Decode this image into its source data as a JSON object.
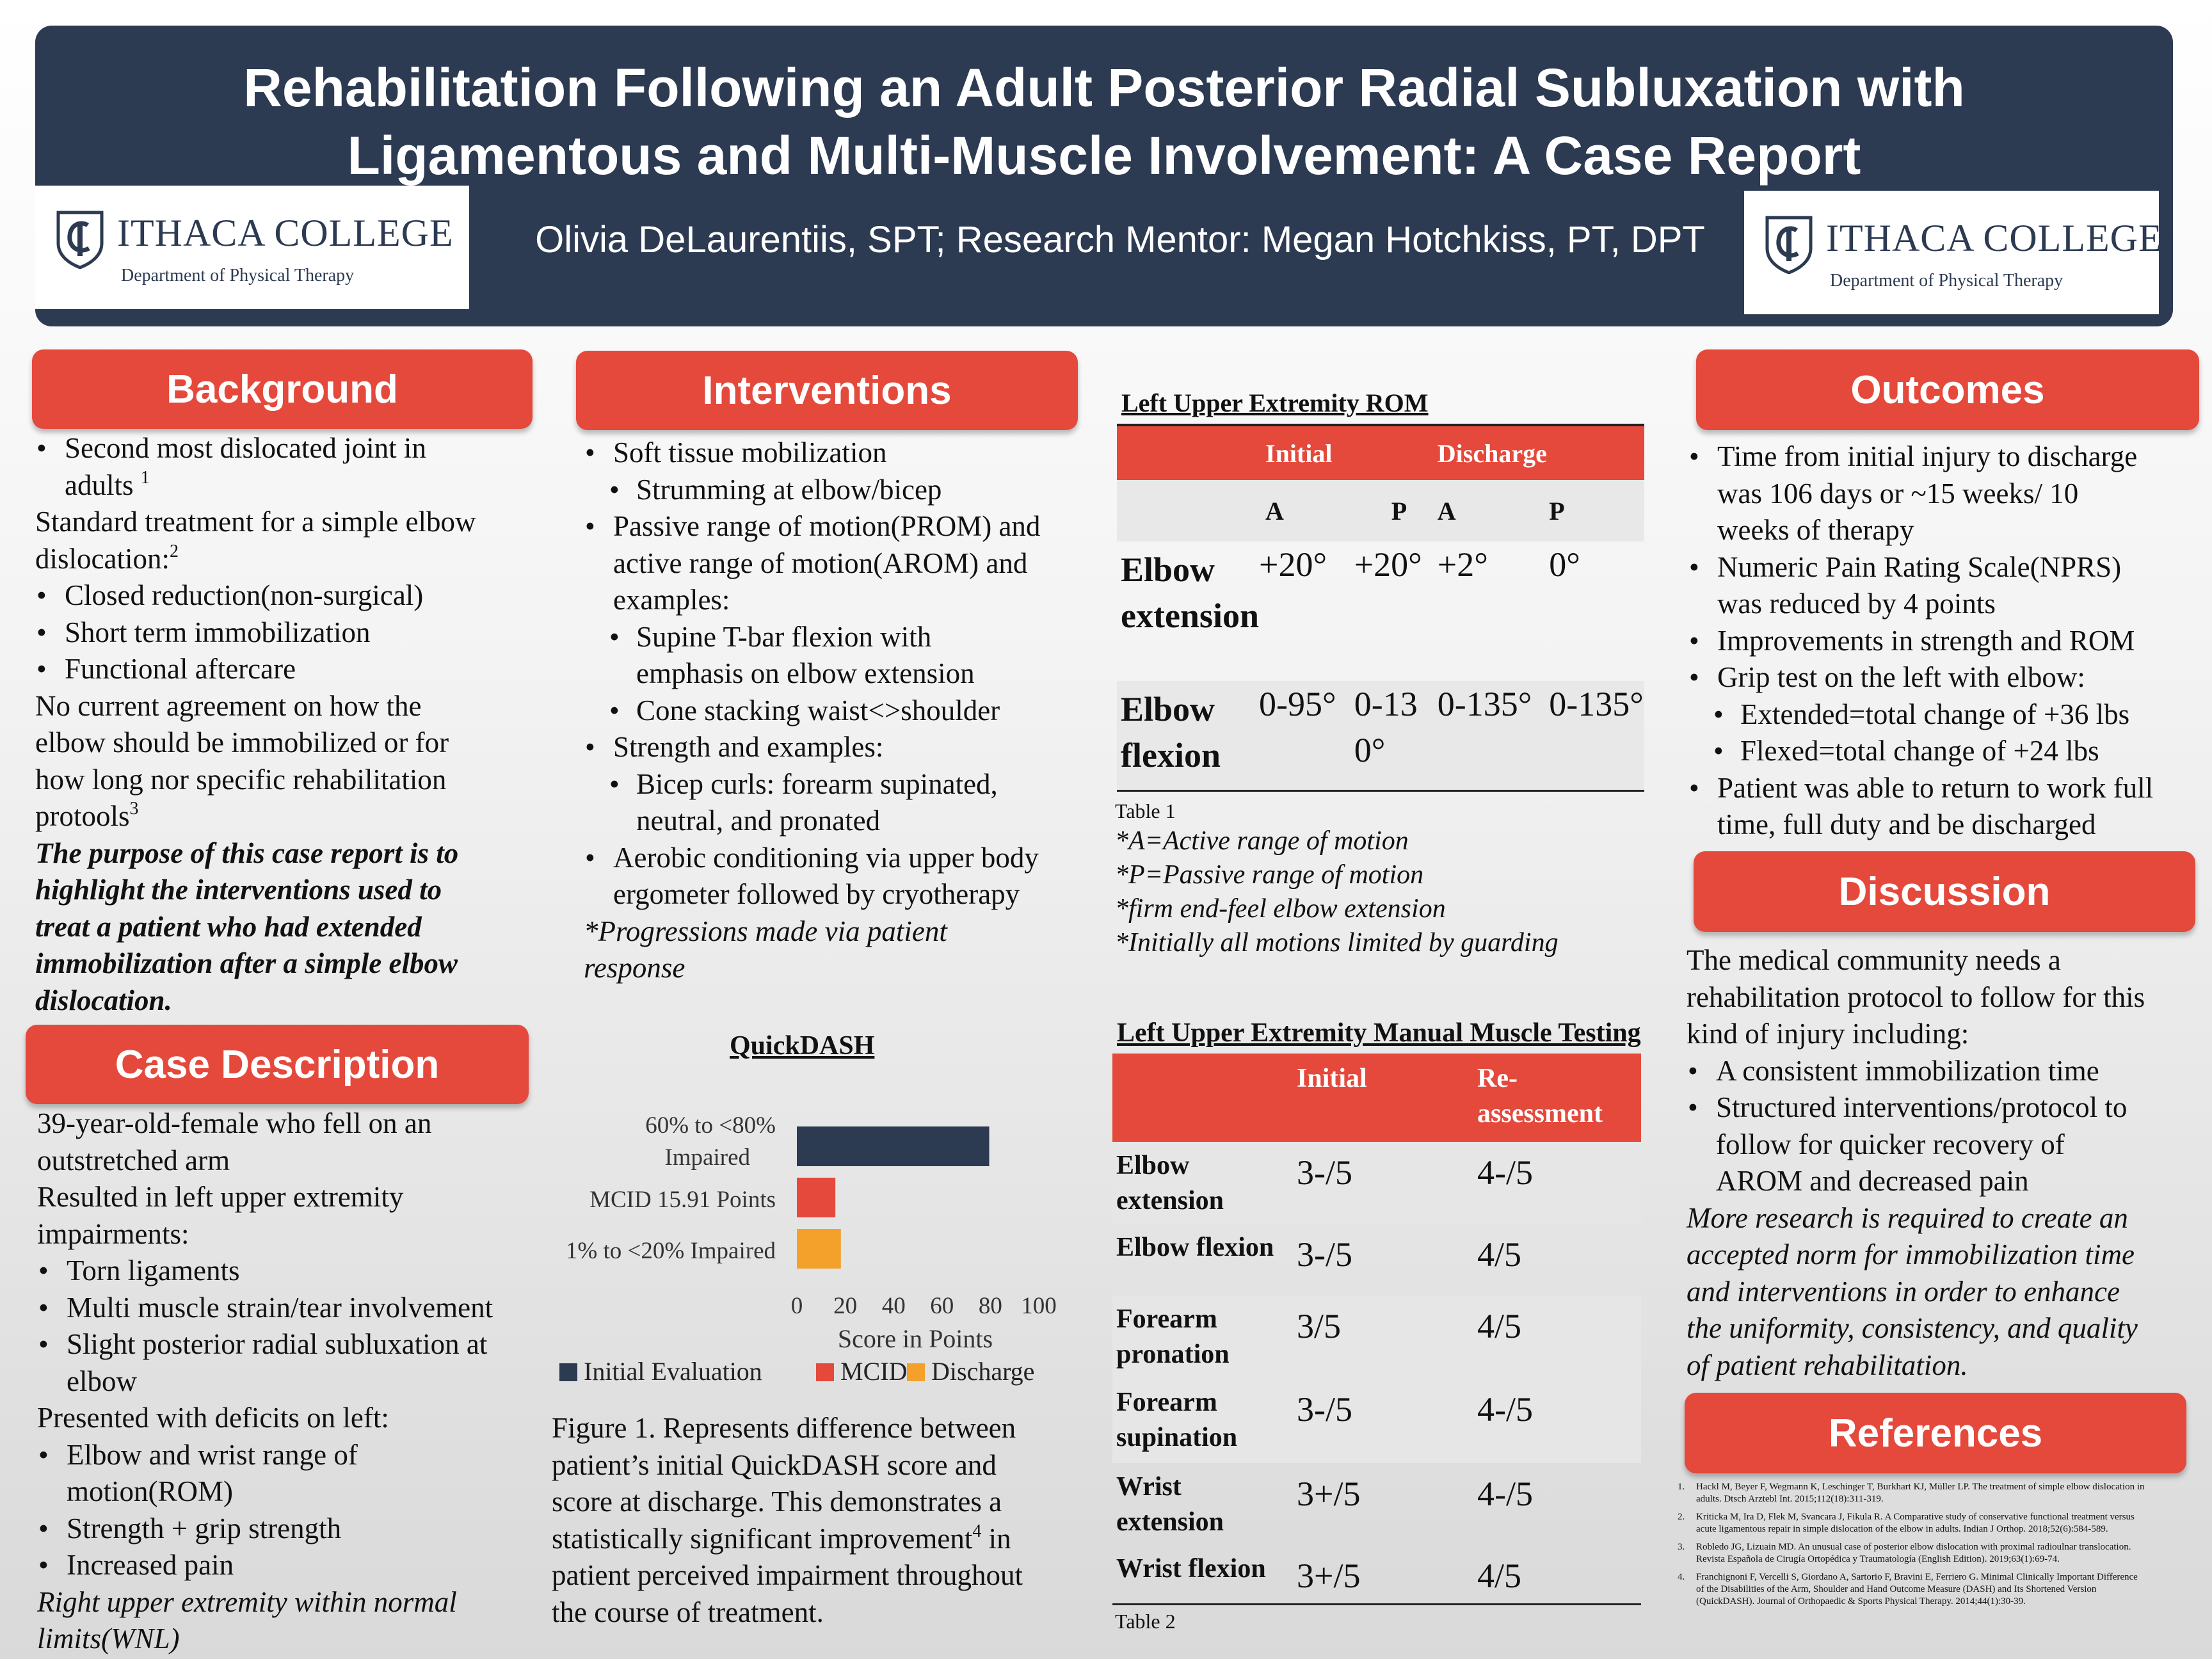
{
  "header": {
    "title_line1": "Rehabilitation Following an Adult Posterior Radial Subluxation with",
    "title_line2": "Ligamentous and Multi-Muscle Involvement: A Case Report",
    "authors": "Olivia DeLaurentiis, SPT; Research Mentor: Megan Hotchkiss, PT, DPT",
    "logo_name": "ITHACA COLLEGE",
    "logo_dept": "Department of Physical Therapy",
    "colors": {
      "header_bg": "#2c3a52",
      "accent": "#e4493c"
    }
  },
  "background": {
    "heading": "Background",
    "b1a": "Second most dislocated joint in",
    "b1b": "adults",
    "b1_ref": "1",
    "p1a": "Standard treatment for a simple elbow",
    "p1b": "dislocation:",
    "p1_ref": "2",
    "b2": "Closed reduction(non-surgical)",
    "b3": "Short term immobilization",
    "b4": "Functional aftercare",
    "p2a": "No current agreement on how the",
    "p2b": "elbow should be immobilized or for",
    "p2c": "how long nor specific rehabilitation",
    "p2d": "protools",
    "p2_ref": "3",
    "purpose1": "The purpose of this case report is to",
    "purpose2": "highlight the interventions used to",
    "purpose3": "treat a patient who had extended",
    "purpose4": "immobilization after a simple elbow",
    "purpose5": "dislocation."
  },
  "case": {
    "heading": "Case Description",
    "l1": "39-year-old-female who fell on an",
    "l2": "outstretched arm",
    "l3": "Resulted in left upper extremity",
    "l4": "impairments:",
    "b1": "Torn ligaments",
    "b2": "Multi muscle strain/tear involvement",
    "b3a": "Slight posterior radial subluxation at",
    "b3b": "elbow",
    "l5": "Presented with deficits on left:",
    "b4a": "Elbow and wrist range of",
    "b4b": "motion(ROM)",
    "b5": "Strength + grip strength",
    "b6": "Increased pain",
    "wnl1": "Right upper extremity within normal",
    "wnl2": "limits(WNL)"
  },
  "interventions": {
    "heading": "Interventions",
    "i1": "Soft tissue mobilization",
    "i1a": "Strumming at elbow/bicep",
    "i2a": "Passive range of motion(PROM) and",
    "i2b": "active range of motion(AROM) and",
    "i2c": "examples:",
    "i2s1a": "Supine T-bar flexion with",
    "i2s1b": "emphasis on elbow extension",
    "i2s2": "Cone stacking waist<>shoulder",
    "i3": "Strength and examples:",
    "i3s1a": "Bicep curls: forearm supinated,",
    "i3s1b": "neutral, and pronated",
    "i4a": "Aerobic conditioning via upper body",
    "i4b": "ergometer followed by cryotherapy",
    "prog1": "*Progressions made via patient",
    "prog2": "response"
  },
  "chart_data": {
    "type": "bar",
    "orientation": "horizontal",
    "title": "QuickDASH",
    "categories": [
      "60% to <80% Impaired",
      "MCID 15.91 Points",
      "1% to <20% Impaired"
    ],
    "series": [
      {
        "name": "Initial Evaluation",
        "color": "#2c3a52",
        "values": [
          79.5,
          null,
          null
        ]
      },
      {
        "name": "MCID",
        "color": "#e4493c",
        "values": [
          null,
          15.91,
          null
        ]
      },
      {
        "name": "Discharge",
        "color": "#f4a12b",
        "values": [
          null,
          null,
          18.2
        ]
      }
    ],
    "xlabel": "Score in Points",
    "xlim": [
      0,
      100
    ],
    "xticks": [
      "0",
      "20",
      "40",
      "60",
      "80",
      "100"
    ],
    "cat_label_1a": "60% to <80%",
    "cat_label_1b": "Impaired",
    "legend_position": "bottom"
  },
  "figure_caption": {
    "l1": "Figure 1. Represents difference between",
    "l2": "patient’s initial QuickDASH score and",
    "l3": "score at discharge. This demonstrates a",
    "l4a": "statistically significant improvement",
    "l4_ref": "4",
    "l4b": " in",
    "l5": "patient perceived impairment throughout",
    "l6": "the course of treatment."
  },
  "rom": {
    "title": "Left Upper Extremity ROM",
    "h_initial": "Initial",
    "h_discharge": "Discharge",
    "a": "A",
    "p": "P",
    "rows": [
      {
        "label1": "Elbow",
        "label2": "extension",
        "ia": "+20°",
        "ip": "+20°",
        "da": "+2°",
        "dp": "0°"
      },
      {
        "label1": "Elbow",
        "label2": "flexion",
        "ia": "0-95°",
        "ip": "0-130°",
        "da": "0-135°",
        "dp": "0-135°"
      }
    ],
    "table_label": "Table 1",
    "n1": "*A=Active range of motion",
    "n2": "*P=Passive range of motion",
    "n3": "*firm end-feel elbow extension",
    "n4": "*Initially all motions limited by guarding"
  },
  "mmt": {
    "title": "Left Upper Extremity Manual Muscle Testing",
    "h_initial": "Initial",
    "h_re1": "Re-",
    "h_re2": "assessment",
    "rows": [
      {
        "label1": "Elbow",
        "label2": "extension",
        "initial": "3-/5",
        "re": "4-/5"
      },
      {
        "label1": "Elbow flexion",
        "label2": "",
        "initial": "3-/5",
        "re": "4/5"
      },
      {
        "label1": "Forearm",
        "label2": "pronation",
        "initial": "3/5",
        "re": "4/5"
      },
      {
        "label1": "Forearm",
        "label2": "supination",
        "initial": "3-/5",
        "re": "4-/5"
      },
      {
        "label1": "Wrist",
        "label2": "extension",
        "initial": "3+/5",
        "re": "4-/5"
      },
      {
        "label1": "Wrist flexion",
        "label2": "",
        "initial": "3+/5",
        "re": "4/5"
      }
    ],
    "table_label": "Table 2"
  },
  "outcomes": {
    "heading": "Outcomes",
    "o1a": "Time from initial injury to discharge",
    "o1b": "was 106 days or ~15 weeks/ 10",
    "o1c": "weeks of therapy",
    "o2a": "Numeric Pain Rating Scale(NPRS)",
    "o2b": "was reduced by 4 points",
    "o3": "Improvements in strength and ROM",
    "o4": "Grip test on the left  with elbow:",
    "o4s1": "Extended=total change of +36 lbs",
    "o4s2": "Flexed=total change of +24 lbs",
    "o5a": "Patient was able to return to work full",
    "o5b": "time, full duty and be discharged"
  },
  "discussion": {
    "heading": "Discussion",
    "p1": "The medical community needs a",
    "p2": "rehabilitation protocol to follow for this",
    "p3": "kind of injury including:",
    "b1": "A consistent immobilization time",
    "b2a": "Structured interventions/protocol to",
    "b2b": "follow for quicker recovery of",
    "b2c": "AROM and decreased pain",
    "it1": "More research is required to create an",
    "it2": "accepted norm for immobilization time",
    "it3": "and interventions in order to enhance",
    "it4": "the uniformity, consistency, and quality",
    "it5": "of patient rehabilitation."
  },
  "references": {
    "heading": "References",
    "items": [
      "Hackl M, Beyer F, Wegmann K, Leschinger T, Burkhart KJ, Müller LP. The treatment of simple elbow dislocation in adults. Dtsch Arztebl Int. 2015;112(18):311-319.",
      "Kriticka M, Ira D, Flek M, Svancara J, Fikula R. A Comparative study of conservative functional treatment versus acute ligamentous repair in simple dislocation of the elbow in adults. Indian J Orthop. 2018;52(6):584-589.",
      "Robledo JG, Lizuain MD. An unusual case of posterior elbow dislocation with proximal radioulnar translocation. Revista Española de Cirugía Ortopédica y Traumatología (English Edition). 2019;63(1):69-74.",
      "Franchignoni F, Vercelli S, Giordano A, Sartorio F, Bravini E, Ferriero G. Minimal Clinically Important Difference of the Disabilities of the Arm, Shoulder and Hand Outcome Measure (DASH) and Its Shortened Version (QuickDASH). Journal of Orthopaedic & Sports Physical Therapy. 2014;44(1):30-39."
    ]
  }
}
